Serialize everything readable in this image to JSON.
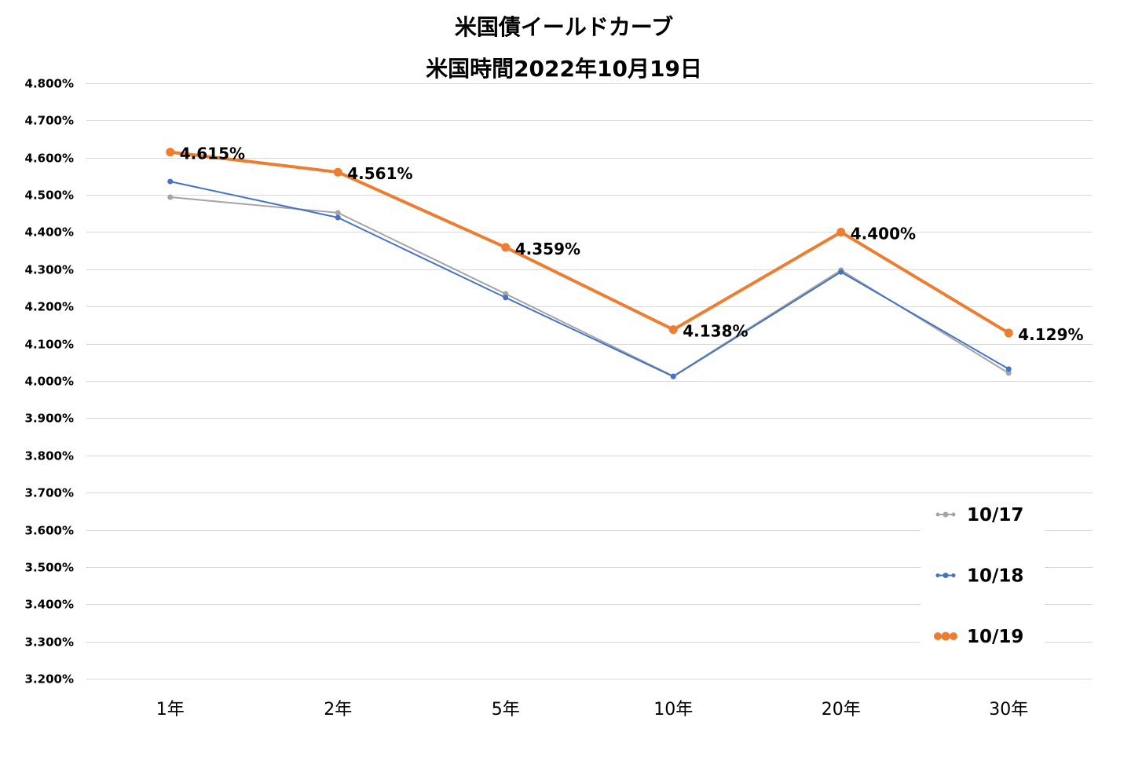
{
  "chart_data": {
    "type": "line",
    "title": "米国債イールドカーブ",
    "subtitle": "米国時間2022年10月19日",
    "xlabel": "",
    "ylabel": "",
    "categories": [
      "1年",
      "2年",
      "5年",
      "10年",
      "20年",
      "30年"
    ],
    "ylim": [
      3.2,
      4.8
    ],
    "y_ticks": [
      {
        "value": 4.8,
        "label": "4.800%"
      },
      {
        "value": 4.7,
        "label": "4.700%"
      },
      {
        "value": 4.6,
        "label": "4.600%"
      },
      {
        "value": 4.5,
        "label": "4.500%"
      },
      {
        "value": 4.4,
        "label": "4.400%"
      },
      {
        "value": 4.3,
        "label": "4.300%"
      },
      {
        "value": 4.2,
        "label": "4.200%"
      },
      {
        "value": 4.1,
        "label": "4.100%"
      },
      {
        "value": 4.0,
        "label": "4.000%"
      },
      {
        "value": 3.9,
        "label": "3.900%"
      },
      {
        "value": 3.8,
        "label": "3.800%"
      },
      {
        "value": 3.7,
        "label": "3.700%"
      },
      {
        "value": 3.6,
        "label": "3.600%"
      },
      {
        "value": 3.5,
        "label": "3.500%"
      },
      {
        "value": 3.4,
        "label": "3.400%"
      },
      {
        "value": 3.3,
        "label": "3.300%"
      },
      {
        "value": 3.2,
        "label": "3.200%"
      }
    ],
    "grid": true,
    "legend_position": "bottom-right",
    "series": [
      {
        "name": "10/17",
        "color": "#A5A5A5",
        "values": [
          4.494,
          4.452,
          4.234,
          4.013,
          4.298,
          4.021
        ],
        "labels": []
      },
      {
        "name": "10/18",
        "color": "#4472C4",
        "values": [
          4.536,
          4.439,
          4.224,
          4.012,
          4.293,
          4.032
        ],
        "labels": []
      },
      {
        "name": "10/19",
        "color": "#ED7D31",
        "values": [
          4.615,
          4.561,
          4.359,
          4.138,
          4.4,
          4.129
        ],
        "labels": [
          "4.615%",
          "4.561%",
          "4.359%",
          "4.138%",
          "4.400%",
          "4.129%"
        ]
      }
    ]
  }
}
